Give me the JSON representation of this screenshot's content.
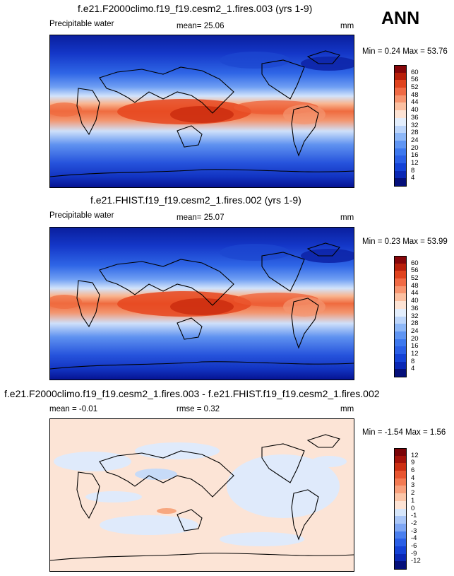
{
  "season": "ANN",
  "panels": [
    {
      "id": "p1",
      "title": "f.e21.F2000climo.f19_f19.cesm2_1.fires.003 (yrs 1-9)",
      "variable": "Precipitable water",
      "mean_label": "mean=",
      "mean_value": "25.06",
      "units": "mm",
      "minmax": "Min =   0.24 Max =  53.76",
      "kind": "field"
    },
    {
      "id": "p2",
      "title": "f.e21.FHIST.f19_f19.cesm2_1.fires.002 (yrs 1-9)",
      "variable": "Precipitable water",
      "mean_label": "mean=",
      "mean_value": "25.07",
      "units": "mm",
      "minmax": "Min =   0.23 Max =  53.99",
      "kind": "field"
    },
    {
      "id": "p3",
      "title": "f.e21.F2000climo.f19_f19.cesm2_1.fires.003 - f.e21.FHIST.f19_f19.cesm2_1.fires.002",
      "mean_text": "mean =   -0.01",
      "rmse_text": "rmse =   0.32",
      "units": "mm",
      "minmax": "Min =  -1.54 Max =   1.56",
      "kind": "diff"
    }
  ],
  "chart_data": [
    {
      "type": "heatmap",
      "title": "f.e21.F2000climo.f19_f19.cesm2_1.fires.003 (yrs 1-9)",
      "variable": "Precipitable water",
      "units": "mm",
      "mean": 25.06,
      "min": 0.24,
      "max": 53.76,
      "colorbar_levels": [
        4,
        8,
        12,
        16,
        20,
        24,
        28,
        32,
        36,
        40,
        44,
        48,
        52,
        56,
        60
      ],
      "colorbar_colors": [
        "#05107a",
        "#0a28b5",
        "#1442d6",
        "#2a5fe6",
        "#3d78ee",
        "#5f95f3",
        "#8db7f7",
        "#bcd5fa",
        "#e3eefc",
        "#fde3d4",
        "#fbc0a1",
        "#f79570",
        "#f06a45",
        "#e0431e",
        "#b8200b",
        "#86060a"
      ]
    },
    {
      "type": "heatmap",
      "title": "f.e21.FHIST.f19_f19.cesm2_1.fires.002 (yrs 1-9)",
      "variable": "Precipitable water",
      "units": "mm",
      "mean": 25.07,
      "min": 0.23,
      "max": 53.99,
      "colorbar_levels": [
        4,
        8,
        12,
        16,
        20,
        24,
        28,
        32,
        36,
        40,
        44,
        48,
        52,
        56,
        60
      ],
      "colorbar_colors": [
        "#05107a",
        "#0a28b5",
        "#1442d6",
        "#2a5fe6",
        "#3d78ee",
        "#5f95f3",
        "#8db7f7",
        "#bcd5fa",
        "#e3eefc",
        "#fde3d4",
        "#fbc0a1",
        "#f79570",
        "#f06a45",
        "#e0431e",
        "#b8200b",
        "#86060a"
      ]
    },
    {
      "type": "heatmap",
      "title": "f.e21.F2000climo.f19_f19.cesm2_1.fires.003 - f.e21.FHIST.f19_f19.cesm2_1.fires.002",
      "units": "mm",
      "mean": -0.01,
      "rmse": 0.32,
      "min": -1.54,
      "max": 1.56,
      "colorbar_levels": [
        -12,
        -9,
        -6,
        -4,
        -3,
        -2,
        -1,
        0,
        1,
        2,
        3,
        4,
        6,
        9,
        12
      ],
      "colorbar_colors": [
        "#05107a",
        "#0a28b5",
        "#1442d6",
        "#2a5fe6",
        "#4a7fee",
        "#7ea6f3",
        "#a9c6f7",
        "#d6e6fa",
        "#fde3d4",
        "#fbc6a8",
        "#f8a07c",
        "#f37a52",
        "#e85530",
        "#cc2f12",
        "#a4120a",
        "#7a0307"
      ]
    }
  ]
}
